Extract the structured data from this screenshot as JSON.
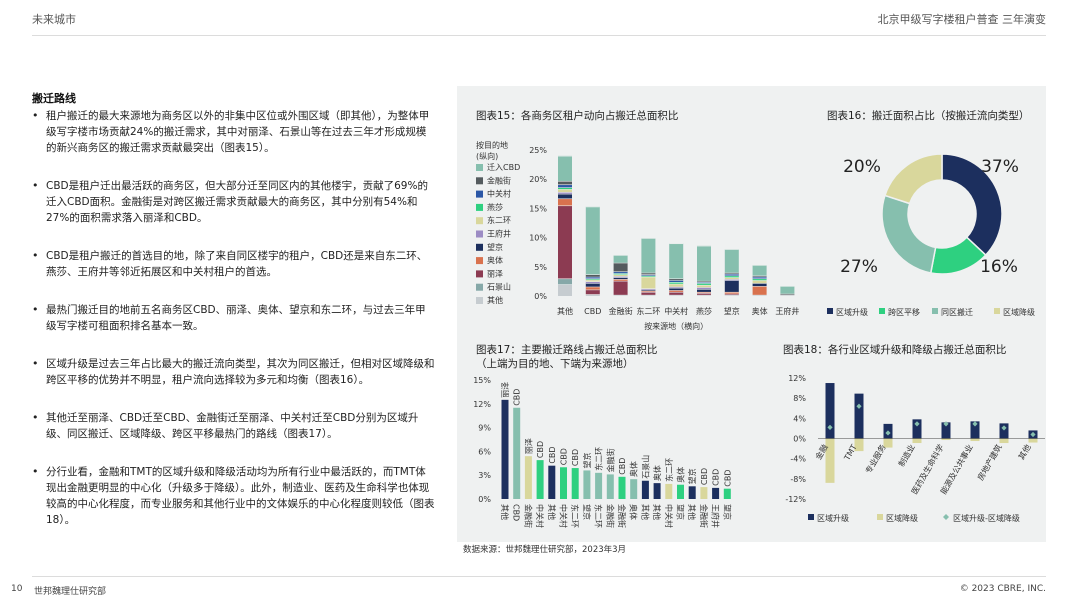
{
  "header": {
    "left": "未来城市",
    "right": "北京甲级写字楼租户普查 三年演变"
  },
  "section_title": "搬迁路线",
  "bullets": [
    "租户搬迁的最大来源地为商务区以外的非集中区位或外围区域（即其他），为整体甲级写字楼市场贡献24%的搬迁需求，其中对丽泽、石景山等在过去三年才形成规模的新兴商务区的搬迁需求贡献最突出（图表15）。",
    "CBD是租户迁出最活跃的商务区，但大部分迁至同区内的其他楼宇，贡献了69%的迁入CBD面积。金融街是对跨区搬迁需求贡献最大的商务区，其中分别有54%和27%的面积需求落入丽泽和CBD。",
    "CBD是租户搬迁的首选目的地，除了来自同区楼宇的租户，CBD还是来自东二环、燕莎、王府井等邻近拓展区和中关村租户的首选。",
    "最热门搬迁目的地前五名商务区CBD、丽泽、奥体、望京和东二环，与过去三年甲级写字楼可租面积排名基本一致。",
    "区域升级是过去三年占比最大的搬迁流向类型，其次为同区搬迁，但相对区域降级和跨区平移的优势并不明显，租户流向选择较为多元和均衡（图表16）。",
    "其他迁至丽泽、CBD迁至CBD、金融街迁至丽泽、中关村迁至CBD分别为区域升级、同区搬迁、区域降级、跨区平移最热门的路线（图表17）。",
    "分行业看，金融和TMT的区域升级和降级活动均为所有行业中最活跃的，而TMT体现出金融更明显的中心化（升级多于降级）。此外，制造业、医药及生命科学也体现较高的中心化程度，而专业服务和其他行业中的文体娱乐的中心化程度则较低（图表18）。"
  ],
  "footer": {
    "page": "10",
    "org": "世邦魏理仕研究部",
    "copyright": "© 2023 CBRE, INC."
  },
  "source": "数据来源：世邦魏理仕研究部，2023年3月",
  "colors": {
    "panel_bg": "#eff1f1",
    "navy": "#1c2f5e",
    "teal": "#86bfae",
    "green": "#2ed080",
    "khaki": "#d9d79c",
    "dark_gray": "#545b5e",
    "red_brown": "#8c3b52",
    "orange": "#d9724e",
    "purple": "#9c8cc4",
    "blue": "#2b57a6",
    "light_gray": "#c6ccd0"
  },
  "chart15": {
    "title": "图表15：各商务区租户动向占搬迁总面积比",
    "legend_title": [
      "按目的地",
      "(纵向)"
    ],
    "xlabel": "按来源地（横向）",
    "chart_data": {
      "type": "bar",
      "stacked": true,
      "categories": [
        "其他",
        "CBD",
        "金融街",
        "东二环",
        "中关村",
        "燕莎",
        "望京",
        "奥体",
        "王府井"
      ],
      "ylim": [
        0,
        25
      ],
      "yticks": [
        "0%",
        "5%",
        "10%",
        "15%",
        "20%",
        "25%"
      ],
      "series": [
        {
          "name": "其他",
          "color": "#c6ccd0",
          "values": [
            2.0,
            0.3,
            0.2,
            0.2,
            0.2,
            0.2,
            0.2,
            0.2,
            0.2
          ]
        },
        {
          "name": "石景山",
          "color": "#86a8a8",
          "values": [
            1.0,
            0.0,
            0.0,
            0.0,
            0.0,
            0.0,
            0.0,
            0.0,
            0.0
          ]
        },
        {
          "name": "丽泽",
          "color": "#8c3b52",
          "values": [
            12.5,
            0.8,
            2.4,
            0.5,
            0.5,
            0.3,
            0.2,
            0.0,
            0.0
          ]
        },
        {
          "name": "奥体",
          "color": "#d9724e",
          "values": [
            1.2,
            0.5,
            0.3,
            0.2,
            0.3,
            0.2,
            0.3,
            1.5,
            0.0
          ]
        },
        {
          "name": "望京",
          "color": "#1c2f5e",
          "values": [
            0.8,
            0.6,
            0.3,
            0.2,
            0.4,
            0.5,
            2.0,
            0.5,
            0.0
          ]
        },
        {
          "name": "王府井",
          "color": "#9c8cc4",
          "values": [
            0.3,
            0.3,
            0.2,
            0.2,
            0.2,
            0.3,
            0.2,
            0.0,
            0.0
          ]
        },
        {
          "name": "东二环",
          "color": "#d9d79c",
          "values": [
            0.5,
            0.3,
            0.3,
            2.0,
            0.5,
            0.4,
            0.3,
            0.5,
            0.0
          ]
        },
        {
          "name": "燕莎",
          "color": "#2ed080",
          "values": [
            0.3,
            0.2,
            0.2,
            0.2,
            0.3,
            0.3,
            0.3,
            0.3,
            0.0
          ]
        },
        {
          "name": "中关村",
          "color": "#2b57a6",
          "values": [
            0.5,
            0.3,
            0.3,
            0.2,
            0.3,
            0.2,
            0.3,
            0.3,
            0.0
          ]
        },
        {
          "name": "金融街",
          "color": "#545b5e",
          "values": [
            0.6,
            0.4,
            1.5,
            0.3,
            0.3,
            0.2,
            0.2,
            0.2,
            0.2
          ]
        },
        {
          "name": "迁入CBD",
          "color": "#86bfae",
          "values": [
            4.3,
            11.6,
            1.3,
            5.9,
            6.0,
            6.0,
            4.0,
            1.8,
            1.3
          ]
        }
      ],
      "legend": [
        "迁入CBD",
        "金融街",
        "中关村",
        "燕莎",
        "东二环",
        "王府井",
        "望京",
        "奥体",
        "丽泽",
        "石景山",
        "其他"
      ]
    }
  },
  "chart16": {
    "title": "图表16：搬迁面积占比（按搬迁流向类型）",
    "chart_data": {
      "type": "pie",
      "donut": true,
      "labels": [
        "区域升级",
        "跨区平移",
        "同区搬迁",
        "区域降级"
      ],
      "values": [
        37,
        16,
        27,
        20
      ],
      "value_labels": [
        "37%",
        "16%",
        "27%",
        "20%"
      ],
      "colors": [
        "#1c2f5e",
        "#2ed080",
        "#86bfae",
        "#d9d79c"
      ]
    }
  },
  "chart17": {
    "title": [
      "图表17：主要搬迁路线占搬迁总面积比",
      "（上端为目的地、下端为来源地）"
    ],
    "chart_data": {
      "type": "bar",
      "ylim": [
        0,
        15
      ],
      "yticks": [
        "0%",
        "3%",
        "6%",
        "9%",
        "12%",
        "15%"
      ],
      "bars": [
        {
          "top": "丽泽",
          "bottom": "其他",
          "value": 12.5,
          "color": "#1c2f5e"
        },
        {
          "top": "CBD",
          "bottom": "CBD",
          "value": 11.5,
          "color": "#86bfae"
        },
        {
          "top": "丽泽",
          "bottom": "金融街",
          "value": 5.4,
          "color": "#d9d79c"
        },
        {
          "top": "CBD",
          "bottom": "中关村",
          "value": 4.9,
          "color": "#2ed080"
        },
        {
          "top": "CBD",
          "bottom": "其他",
          "value": 4.2,
          "color": "#1c2f5e"
        },
        {
          "top": "CBD",
          "bottom": "中关村",
          "value": 4.0,
          "color": "#2ed080"
        },
        {
          "top": "CBD",
          "bottom": "东二环",
          "value": 3.9,
          "color": "#2ed080"
        },
        {
          "top": "望京",
          "bottom": "望京",
          "value": 3.6,
          "color": "#86bfae"
        },
        {
          "top": "东二环",
          "bottom": "东二环",
          "value": 3.3,
          "color": "#86bfae"
        },
        {
          "top": "金融街",
          "bottom": "金融街",
          "value": 3.1,
          "color": "#86bfae"
        },
        {
          "top": "CBD",
          "bottom": "金融街",
          "value": 2.8,
          "color": "#2ed080"
        },
        {
          "top": "奥体",
          "bottom": "奥体",
          "value": 2.5,
          "color": "#86bfae"
        },
        {
          "top": "石景山",
          "bottom": "其他",
          "value": 2.3,
          "color": "#1c2f5e"
        },
        {
          "top": "奥体",
          "bottom": "其他",
          "value": 2.0,
          "color": "#1c2f5e"
        },
        {
          "top": "东二环",
          "bottom": "中关村",
          "value": 1.9,
          "color": "#d9d79c"
        },
        {
          "top": "奥体",
          "bottom": "望京",
          "value": 1.8,
          "color": "#2ed080"
        },
        {
          "top": "望京",
          "bottom": "其他",
          "value": 1.6,
          "color": "#1c2f5e"
        },
        {
          "top": "CBD",
          "bottom": "金融街",
          "value": 1.5,
          "color": "#d9d79c"
        },
        {
          "top": "CBD",
          "bottom": "王府井",
          "value": 1.4,
          "color": "#1c2f5e"
        },
        {
          "top": "CBD",
          "bottom": "望京",
          "value": 1.3,
          "color": "#2ed080"
        }
      ]
    }
  },
  "chart18": {
    "title": "图表18：各行业区域升级和降级占搬迁总面积比",
    "chart_data": {
      "type": "bar",
      "categories": [
        "金融",
        "TMT",
        "专业服务",
        "制造业",
        "医药及生命科学",
        "能源及公共事业",
        "房地产建筑",
        "其他"
      ],
      "ylim": [
        -12,
        12
      ],
      "yticks": [
        "12%",
        "8%",
        "4%",
        "0%",
        "-4%",
        "-8%",
        "-12%"
      ],
      "series": [
        {
          "name": "区域升级",
          "color": "#1c2f5e",
          "values": [
            11.0,
            8.9,
            2.9,
            3.8,
            3.2,
            3.4,
            3.0,
            1.6
          ]
        },
        {
          "name": "区域降级",
          "color": "#d9d79c",
          "values": [
            -8.8,
            -2.5,
            -1.8,
            -0.9,
            -0.3,
            -0.5,
            -0.9,
            -0.8
          ]
        }
      ],
      "net_series": {
        "name": "区域升级-区域降级",
        "color": "#86bfae",
        "values": [
          2.2,
          6.4,
          1.1,
          2.9,
          2.9,
          2.9,
          2.1,
          0.8
        ]
      }
    }
  }
}
